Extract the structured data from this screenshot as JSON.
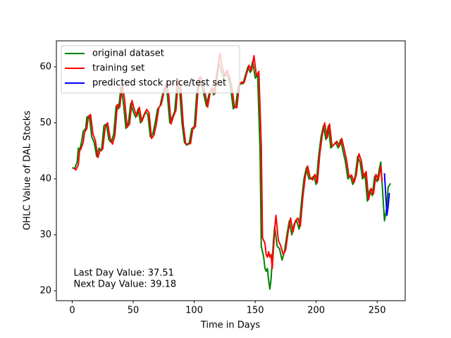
{
  "chart_data": {
    "type": "line",
    "xlabel": "Time in Days",
    "ylabel": "OHLC Value of DAL Stocks",
    "xlim": [
      -13,
      273
    ],
    "ylim": [
      18.24,
      64.65
    ],
    "xticks": [
      0,
      50,
      100,
      150,
      200,
      250
    ],
    "yticks": [
      20,
      30,
      40,
      50,
      60
    ],
    "legend": "upper left",
    "annotations": [
      "Last Day Value: 37.51",
      "Next Day Value: 39.18"
    ],
    "series": [
      {
        "name": "original dataset",
        "color": "#008000",
        "x": [
          0,
          2,
          4,
          5,
          6,
          8,
          9,
          11,
          12,
          14,
          16,
          18,
          20,
          22,
          24,
          26,
          28,
          30,
          32,
          34,
          36,
          38,
          40,
          42,
          44,
          46,
          48,
          50,
          52,
          54,
          56,
          58,
          60,
          62,
          64,
          66,
          68,
          70,
          72,
          74,
          76,
          78,
          80,
          82,
          84,
          86,
          88,
          90,
          92,
          94,
          96,
          98,
          100,
          102,
          104,
          106,
          108,
          110,
          112,
          114,
          116,
          118,
          120,
          122,
          124,
          126,
          128,
          130,
          132,
          134,
          136,
          138,
          140,
          142,
          144,
          146,
          148,
          150,
          152,
          154,
          155,
          157,
          158,
          159,
          160,
          161,
          162,
          163,
          165,
          166,
          168,
          170,
          172,
          174,
          176,
          178,
          180,
          182,
          184,
          186,
          188,
          190,
          192,
          194,
          196,
          198,
          200,
          202,
          204,
          206,
          208,
          210,
          212,
          214,
          216,
          218,
          220,
          222,
          224,
          226,
          228,
          230,
          232,
          234,
          236,
          238,
          240,
          242,
          244,
          246,
          248,
          250,
          252,
          253,
          255,
          256,
          258,
          259,
          261
        ],
        "values": [
          42,
          41.8,
          43,
          45.5,
          45,
          47,
          48.5,
          49,
          51,
          51.3,
          47.5,
          46.5,
          44,
          45.5,
          45,
          49.5,
          49.8,
          47,
          46.5,
          48,
          53,
          52.5,
          56.5,
          53.5,
          49,
          50,
          53.5,
          52,
          51,
          52.5,
          50,
          51,
          52,
          51.5,
          47.5,
          48,
          50,
          52.5,
          53,
          55,
          56.5,
          55,
          50,
          51,
          52,
          57,
          56,
          50,
          46.5,
          46,
          46.5,
          49,
          49,
          55,
          58,
          57,
          55,
          53,
          55,
          56,
          55,
          58,
          61,
          59.5,
          58,
          59,
          58,
          56,
          52.5,
          53,
          56.5,
          57,
          57,
          58.5,
          60,
          59,
          61,
          58,
          58.5,
          45,
          28,
          26,
          24,
          23.5,
          24,
          22,
          20.3,
          22,
          29,
          31.5,
          28,
          27.5,
          25.5,
          27,
          30,
          32.5,
          30,
          32,
          32.5,
          31,
          36,
          40,
          42,
          40,
          40,
          40.5,
          39,
          44,
          47.5,
          49.5,
          47,
          49.5,
          45.5,
          46,
          46.5,
          45.5,
          47,
          45,
          43,
          40,
          40.5,
          39,
          40.5,
          44,
          43,
          40,
          41,
          36,
          38,
          37,
          40.5,
          39.5,
          42,
          43,
          36,
          32.5,
          35,
          38.5,
          39.2
        ]
      },
      {
        "name": "training set",
        "color": "#ff0000",
        "x": [
          1,
          3,
          5,
          6,
          7,
          9,
          10,
          12,
          13,
          15,
          17,
          19,
          21,
          23,
          25,
          27,
          29,
          31,
          33,
          35,
          37,
          39,
          41,
          43,
          45,
          47,
          49,
          51,
          53,
          55,
          57,
          59,
          61,
          63,
          65,
          67,
          69,
          71,
          73,
          75,
          77,
          79,
          81,
          83,
          85,
          87,
          89,
          91,
          93,
          95,
          97,
          99,
          101,
          103,
          105,
          107,
          109,
          111,
          113,
          115,
          117,
          119,
          121,
          123,
          125,
          127,
          129,
          131,
          133,
          135,
          137,
          139,
          141,
          143,
          145,
          147,
          149,
          151,
          153,
          155,
          156,
          158,
          159,
          160,
          161,
          162,
          163,
          164,
          166,
          167,
          169,
          171,
          173,
          175,
          177,
          179,
          181,
          183,
          185,
          187,
          189,
          191,
          193,
          195,
          197,
          199,
          201,
          203,
          205,
          207,
          209,
          211,
          213,
          215,
          217,
          219,
          221,
          223,
          225,
          227,
          229,
          231,
          233,
          235,
          237,
          239,
          241,
          243,
          245,
          247,
          249,
          251,
          253,
          254
        ],
        "values": [
          42,
          41.6,
          42.5,
          45,
          45.3,
          46.5,
          48.2,
          49,
          50.8,
          51.5,
          48,
          46.8,
          43.8,
          45.2,
          45.3,
          49.2,
          50,
          47.3,
          46.2,
          47.8,
          53.3,
          52.8,
          57,
          54,
          49.2,
          49.8,
          54,
          52.3,
          51.2,
          52.8,
          50.2,
          51.3,
          52.4,
          51.8,
          47.2,
          47.8,
          49.8,
          52.7,
          53.3,
          55.3,
          57,
          55.3,
          49.8,
          51.2,
          52.2,
          57.8,
          56.4,
          49.8,
          46.3,
          46.2,
          46.3,
          49.2,
          49.3,
          55.5,
          58.3,
          57.3,
          55.2,
          52.8,
          55.3,
          56.3,
          55.2,
          58.4,
          62.5,
          60,
          58.3,
          59.4,
          58.2,
          56.3,
          52.8,
          52.7,
          56.8,
          57.3,
          57.2,
          58.8,
          60.3,
          59.3,
          62,
          58.4,
          59.2,
          46,
          29.5,
          28.5,
          26.5,
          26,
          27,
          26,
          26.5,
          24,
          31,
          33.5,
          29,
          28,
          26.5,
          27.3,
          30.5,
          33,
          30.5,
          32.5,
          33,
          31.5,
          36.5,
          40.3,
          42.3,
          40.3,
          39.8,
          40.8,
          39.3,
          44.5,
          47.8,
          50,
          47.3,
          49.8,
          45.8,
          46.2,
          46.7,
          45.8,
          47.2,
          45.3,
          43.3,
          40.3,
          40.7,
          39.3,
          40.8,
          44.5,
          43.3,
          40.2,
          41.3,
          36.3,
          38.3,
          37.3,
          40.8,
          39.8,
          42.3,
          39.5
        ]
      },
      {
        "name": "predicted stock price/test set",
        "color": "#0000ff",
        "x": [
          256,
          258,
          259,
          260
        ],
        "values": [
          41,
          33.5,
          35,
          37.5
        ]
      }
    ]
  }
}
